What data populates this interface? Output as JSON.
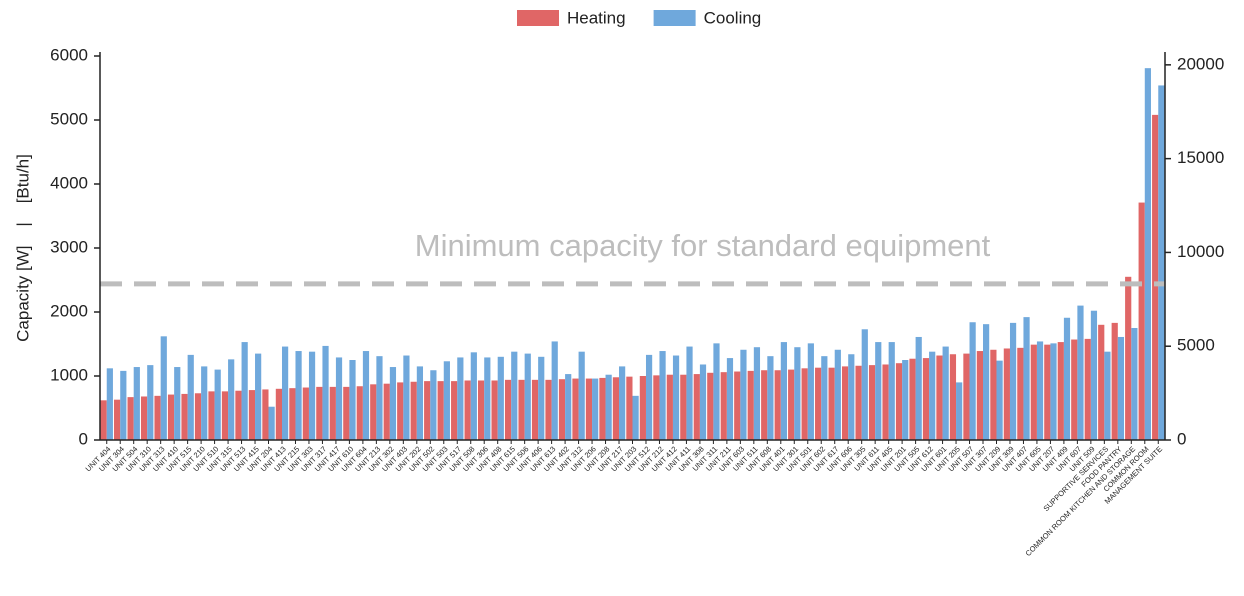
{
  "chart_data": {
    "type": "bar",
    "ylabel": "Capacity [W]    |    [Btu/h]",
    "categories": [
      "UNIT 404",
      "UNIT 304",
      "UNIT 504",
      "UNIT 310",
      "UNIT 313",
      "UNIT 410",
      "UNIT 515",
      "UNIT 210",
      "UNIT 510",
      "UNIT 315",
      "UNIT 513",
      "UNIT 415",
      "UNIT 204",
      "UNIT 413",
      "UNIT 215",
      "UNIT 303",
      "UNIT 317",
      "UNIT 417",
      "UNIT 610",
      "UNIT 604",
      "UNIT 213",
      "UNIT 302",
      "UNIT 403",
      "UNIT 202",
      "UNIT 502",
      "UNIT 503",
      "UNIT 517",
      "UNIT 508",
      "UNIT 306",
      "UNIT 408",
      "UNIT 615",
      "UNIT 506",
      "UNIT 406",
      "UNIT 613",
      "UNIT 402",
      "UNIT 312",
      "UNIT 206",
      "UNIT 208",
      "UNIT 217",
      "UNIT 203",
      "UNIT 512",
      "UNIT 212",
      "UNIT 412",
      "UNIT 411",
      "UNIT 308",
      "UNIT 311",
      "UNIT 211",
      "UNIT 603",
      "UNIT 511",
      "UNIT 608",
      "UNIT 401",
      "UNIT 301",
      "UNIT 501",
      "UNIT 602",
      "UNIT 617",
      "UNIT 606",
      "UNIT 305",
      "UNIT 611",
      "UNIT 405",
      "UNIT 201",
      "UNIT 505",
      "UNIT 612",
      "UNIT 601",
      "UNIT 205",
      "UNIT 507",
      "UNIT 307",
      "UNIT 209",
      "UNIT 309",
      "UNIT 407",
      "UNIT 605",
      "UNIT 207",
      "UNIT 409",
      "UNIT 607",
      "UNIT 509",
      "SUPPORTIVE SERVICES",
      "FOOD PANTRY",
      "COMMON ROOM KITCHEN AND STORAGE",
      "COMMON ROOM",
      "MANAGEMENT SUITE"
    ],
    "series": [
      {
        "name": "Heating",
        "color": "#e06666",
        "values": [
          620,
          630,
          670,
          680,
          690,
          710,
          720,
          730,
          760,
          760,
          770,
          780,
          790,
          800,
          810,
          820,
          830,
          830,
          830,
          840,
          870,
          880,
          900,
          910,
          920,
          920,
          920,
          930,
          930,
          930,
          940,
          940,
          940,
          940,
          950,
          960,
          960,
          970,
          980,
          990,
          1000,
          1010,
          1020,
          1020,
          1030,
          1050,
          1060,
          1070,
          1080,
          1090,
          1090,
          1100,
          1120,
          1130,
          1130,
          1150,
          1160,
          1170,
          1180,
          1200,
          1270,
          1280,
          1320,
          1340,
          1350,
          1390,
          1410,
          1430,
          1440,
          1490,
          1490,
          1530,
          1570,
          1580,
          1800,
          1830,
          2550,
          3710,
          5080
        ]
      },
      {
        "name": "Cooling",
        "color": "#6fa8dc",
        "values": [
          1120,
          1080,
          1140,
          1170,
          1620,
          1140,
          1330,
          1150,
          1100,
          1260,
          1530,
          1350,
          520,
          1460,
          1390,
          1380,
          1470,
          1290,
          1250,
          1390,
          1310,
          1140,
          1320,
          1150,
          1090,
          1230,
          1290,
          1370,
          1290,
          1300,
          1380,
          1350,
          1300,
          1540,
          1030,
          1380,
          960,
          1020,
          1150,
          690,
          1330,
          1390,
          1320,
          1460,
          1180,
          1510,
          1280,
          1410,
          1450,
          1310,
          1530,
          1450,
          1510,
          1310,
          1410,
          1340,
          1730,
          1530,
          1530,
          1250,
          1610,
          1380,
          1460,
          900,
          1840,
          1810,
          1240,
          1830,
          1920,
          1540,
          1510,
          1910,
          2100,
          2020,
          1380,
          1610,
          1750,
          5810,
          5540
        ]
      }
    ],
    "ylim": [
      0,
      6000
    ],
    "yticks": [
      0,
      1000,
      2000,
      3000,
      4000,
      5000,
      6000
    ],
    "y2lim": [
      0,
      20472
    ],
    "y2ticks": [
      0,
      5000,
      10000,
      15000,
      20000
    ],
    "threshold": {
      "value": 2440,
      "label": "Minimum capacity for standard equipment"
    },
    "threshold_color": "#bdbdbd",
    "legend": "top"
  }
}
